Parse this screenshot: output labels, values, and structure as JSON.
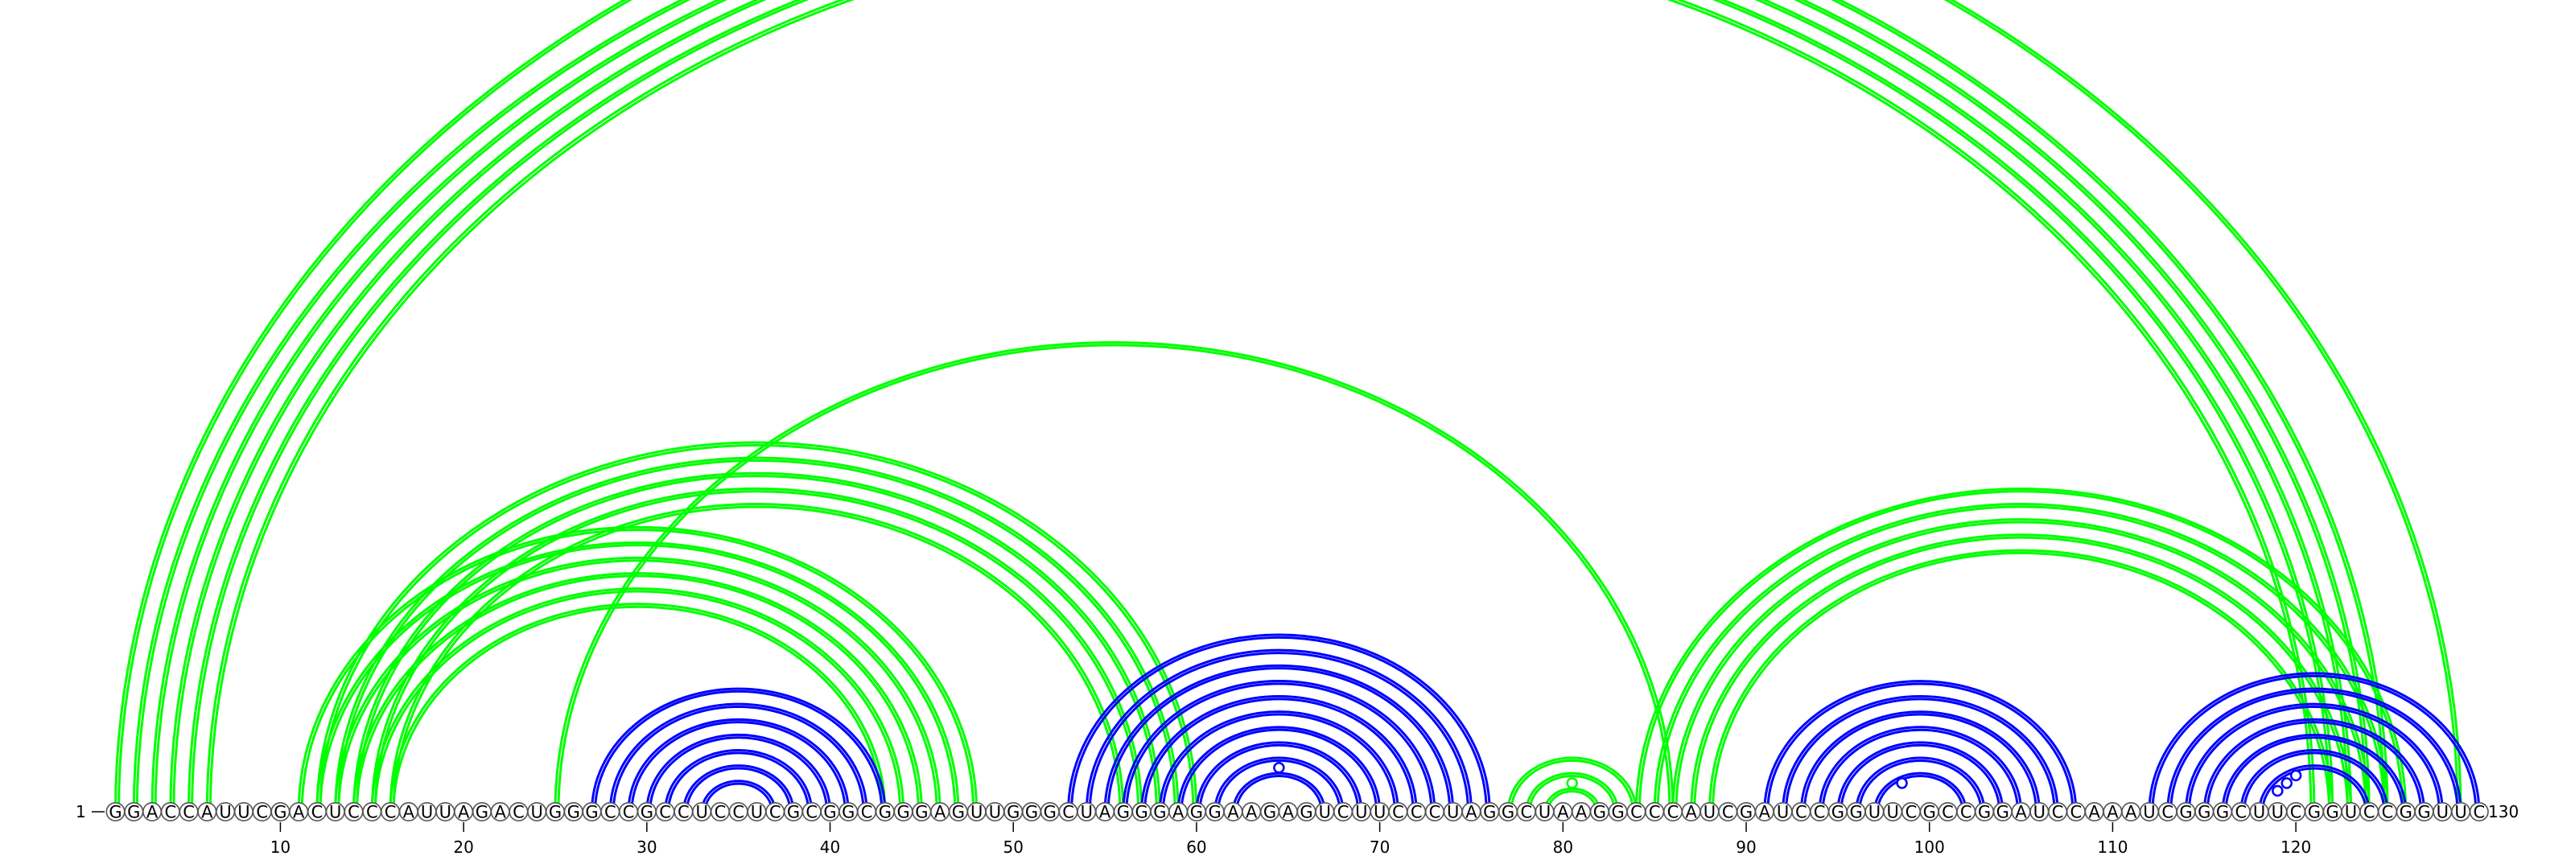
{
  "sequence": "GGACCAUUCGACUCCCAUUAGACUGGGCCGCCUCCUCGCGGCGGGAGUUGGGCUAGGGAGGAAGAGUCUUCCCUAGGCUAAGGCCCAUCGAUCCGGUUCGCCGGAUCCAAAUCGGGCUUCGGUCCGGUUC",
  "start_label": "1",
  "end_label": "130",
  "ticks": [
    {
      "pos": 10,
      "label": "10"
    },
    {
      "pos": 20,
      "label": "20"
    },
    {
      "pos": 30,
      "label": "30"
    },
    {
      "pos": 40,
      "label": "40"
    },
    {
      "pos": 50,
      "label": "50"
    },
    {
      "pos": 60,
      "label": "60"
    },
    {
      "pos": 70,
      "label": "70"
    },
    {
      "pos": 80,
      "label": "80"
    },
    {
      "pos": 90,
      "label": "90"
    },
    {
      "pos": 100,
      "label": "100"
    },
    {
      "pos": 110,
      "label": "110"
    },
    {
      "pos": 120,
      "label": "120"
    }
  ],
  "colors": {
    "blue": "#0000ff",
    "green": "#00ff00"
  },
  "arc_groups": [
    {
      "name": "outer-green-helix",
      "color": "green",
      "arcs": [
        [
          1,
          129
        ],
        [
          2,
          125
        ],
        [
          3,
          124
        ],
        [
          4,
          123
        ],
        [
          5,
          122
        ],
        [
          6,
          121
        ]
      ],
      "markers": []
    },
    {
      "name": "middle-green-helix-a",
      "color": "green",
      "arcs": [
        [
          11,
          48
        ],
        [
          12,
          47
        ],
        [
          13,
          46
        ],
        [
          14,
          45
        ],
        [
          15,
          44
        ],
        [
          16,
          43
        ]
      ],
      "markers": []
    },
    {
      "name": "middle-green-helix-b",
      "color": "green",
      "arcs": [
        [
          12,
          60
        ],
        [
          13,
          59
        ],
        [
          14,
          58
        ],
        [
          15,
          57
        ],
        [
          16,
          56
        ]
      ],
      "markers": []
    },
    {
      "name": "long-green-arc",
      "color": "green",
      "arcs": [
        [
          25,
          86
        ]
      ],
      "markers": []
    },
    {
      "name": "right-green-helix",
      "color": "green",
      "arcs": [
        [
          84,
          126
        ],
        [
          85,
          125
        ],
        [
          86,
          124
        ],
        [
          87,
          123
        ],
        [
          88,
          122
        ]
      ],
      "markers": []
    },
    {
      "name": "small-green-hairpin",
      "color": "green",
      "arcs": [
        [
          77,
          84
        ],
        [
          78,
          83
        ],
        [
          79,
          82
        ]
      ],
      "markers": [
        [
          80,
          81
        ]
      ]
    },
    {
      "name": "blue-hairpin-30s",
      "color": "blue",
      "arcs": [
        [
          27,
          43
        ],
        [
          28,
          42
        ],
        [
          29,
          41
        ],
        [
          30,
          40
        ],
        [
          31,
          39
        ],
        [
          32,
          38
        ],
        [
          33,
          37
        ]
      ],
      "markers": []
    },
    {
      "name": "blue-hairpin-60s",
      "color": "blue",
      "arcs": [
        [
          53,
          76
        ],
        [
          54,
          75
        ],
        [
          55,
          74
        ],
        [
          56,
          73
        ],
        [
          57,
          72
        ],
        [
          58,
          71
        ],
        [
          59,
          70
        ],
        [
          60,
          69
        ],
        [
          61,
          68
        ],
        [
          62,
          67
        ]
      ],
      "markers": [
        [
          63,
          66
        ]
      ]
    },
    {
      "name": "blue-hairpin-90s",
      "color": "blue",
      "arcs": [
        [
          91,
          108
        ],
        [
          92,
          107
        ],
        [
          93,
          106
        ],
        [
          94,
          105
        ],
        [
          95,
          104
        ],
        [
          96,
          103
        ],
        [
          97,
          102
        ]
      ],
      "markers": [
        [
          98,
          99
        ]
      ]
    },
    {
      "name": "blue-hairpin-120s",
      "color": "blue",
      "arcs": [
        [
          112,
          130
        ],
        [
          113,
          129
        ],
        [
          114,
          128
        ],
        [
          115,
          127
        ],
        [
          116,
          126
        ],
        [
          117,
          125
        ],
        [
          118,
          124
        ]
      ],
      "markers": [
        [
          119,
          121
        ],
        [
          119,
          120
        ],
        [
          119,
          119
        ]
      ]
    }
  ]
}
